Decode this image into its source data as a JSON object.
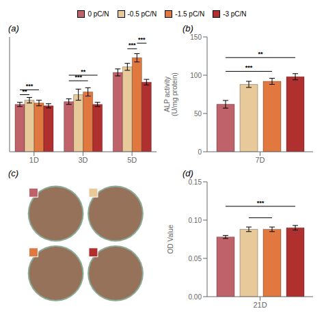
{
  "chart_data": [
    {
      "type": "bar",
      "title": "(a)",
      "categories": [
        "1D",
        "3D",
        "5D"
      ],
      "series": [
        {
          "name": "0 pC/N",
          "color": "#c0626a",
          "values": [
            68,
            72,
            114
          ],
          "errors": [
            3,
            4,
            5
          ]
        },
        {
          "name": "-0.5 pC/N",
          "color": "#e8c99a",
          "values": [
            74,
            82,
            122
          ],
          "errors": [
            4,
            8,
            5
          ]
        },
        {
          "name": "-1.5 pC/N",
          "color": "#e07840",
          "values": [
            70,
            86,
            135
          ],
          "errors": [
            4,
            6,
            6
          ]
        },
        {
          "name": "-3 pC/N",
          "color": "#b03030",
          "values": [
            66,
            68,
            100
          ],
          "errors": [
            3,
            3,
            4
          ]
        }
      ],
      "ylim": [
        0,
        165
      ],
      "yticks": [],
      "tick_labels": "x",
      "legend": "top",
      "annotations": [
        {
          "text": "**",
          "category": "1D",
          "between": [
            "0 pC/N",
            "-0.5 pC/N"
          ],
          "y": 82
        },
        {
          "text": "***",
          "category": "1D",
          "between": [
            "0 pC/N",
            "-1.5 pC/N"
          ],
          "y": 89
        },
        {
          "text": "***",
          "category": "3D",
          "between": [
            "0 pC/N",
            "-1.5 pC/N"
          ],
          "y": 102
        },
        {
          "text": "**",
          "category": "3D",
          "between": [
            "0 pC/N",
            "-3 pC/N"
          ],
          "y": 110
        },
        {
          "text": "***",
          "category": "5D",
          "between": [
            "-0.5 pC/N",
            "-1.5 pC/N"
          ],
          "y": 148
        },
        {
          "text": "***",
          "category": "5D",
          "between": [
            "-1.5 pC/N",
            "-3 pC/N"
          ],
          "y": 156
        }
      ]
    },
    {
      "type": "bar",
      "title": "(b)",
      "categories": [
        "7D"
      ],
      "ylabel": "ALP activity\n(U/mg protein)",
      "series": [
        {
          "name": "0 pC/N",
          "color": "#c0626a",
          "values": [
            62
          ],
          "errors": [
            5
          ]
        },
        {
          "name": "-0.5 pC/N",
          "color": "#e8c99a",
          "values": [
            88
          ],
          "errors": [
            4
          ]
        },
        {
          "name": "-1.5 pC/N",
          "color": "#e07840",
          "values": [
            92
          ],
          "errors": [
            4
          ]
        },
        {
          "name": "-3 pC/N",
          "color": "#b03030",
          "values": [
            98
          ],
          "errors": [
            4
          ]
        }
      ],
      "ylim": [
        0,
        150
      ],
      "yticks": [
        0,
        50,
        100,
        150
      ],
      "annotations": [
        {
          "text": "**",
          "category": "7D",
          "between": [
            "0 pC/N",
            "-3 pC/N"
          ],
          "y": 123
        },
        {
          "text": "***",
          "category": "7D",
          "between": [
            "0 pC/N",
            "-1.5 pC/N"
          ],
          "y": 105
        }
      ]
    },
    {
      "type": "image",
      "title": "(c)",
      "colors": [
        "#c0626a",
        "#e8c99a",
        "#e07840",
        "#b03030"
      ]
    },
    {
      "type": "bar",
      "title": "(d)",
      "categories": [
        "21D"
      ],
      "ylabel": "OD Value",
      "series": [
        {
          "name": "0 pC/N",
          "color": "#c0626a",
          "values": [
            0.078
          ],
          "errors": [
            0.002
          ]
        },
        {
          "name": "-0.5 pC/N",
          "color": "#e8c99a",
          "values": [
            0.088
          ],
          "errors": [
            0.003
          ]
        },
        {
          "name": "-1.5 pC/N",
          "color": "#e07840",
          "values": [
            0.088
          ],
          "errors": [
            0.003
          ]
        },
        {
          "name": "-3 pC/N",
          "color": "#b03030",
          "values": [
            0.09
          ],
          "errors": [
            0.003
          ]
        }
      ],
      "ylim": [
        0,
        0.15
      ],
      "yticks": [
        {
          "value": 0,
          "label": "0.00"
        },
        0.05,
        {
          "value": 0.1,
          "label": "0.10"
        },
        0.15
      ],
      "annotations": [
        {
          "text": "***",
          "category": "21D",
          "between": [
            "0 pC/N",
            "-3 pC/N"
          ],
          "y": 0.118
        },
        {
          "category": "21D",
          "between": [
            "-0.5 pC/N",
            "-1.5 pC/N"
          ],
          "y": 0.103
        }
      ]
    }
  ]
}
